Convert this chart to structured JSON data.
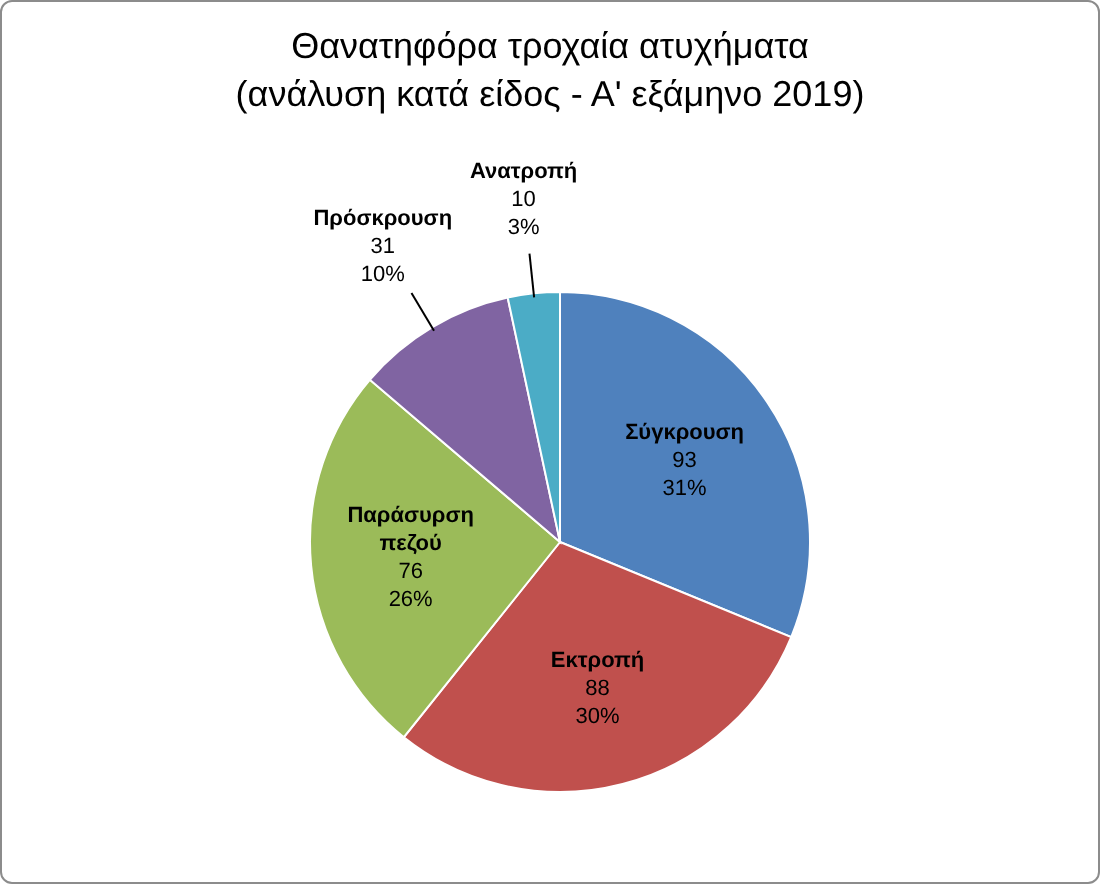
{
  "chart_data": {
    "type": "pie",
    "title": "Θανατηφόρα τροχαία ατυχήματα",
    "subtitle": "(ανάλυση κατά είδος - Α' εξάμηνο 2019)",
    "categories": [
      "Σύγκρουση",
      "Εκτροπή",
      "Παράσυρση πεζού",
      "Πρόσκρουση",
      "Ανατροπή"
    ],
    "values": [
      93,
      88,
      76,
      31,
      10
    ],
    "colors": [
      "#4f81bd",
      "#c0504d",
      "#9bbb59",
      "#8064a2",
      "#4bacc6"
    ],
    "value_labels": [
      "93\n31%",
      "88\n30%",
      "76\n26%",
      "31\n10%",
      "10\n3%"
    ]
  }
}
